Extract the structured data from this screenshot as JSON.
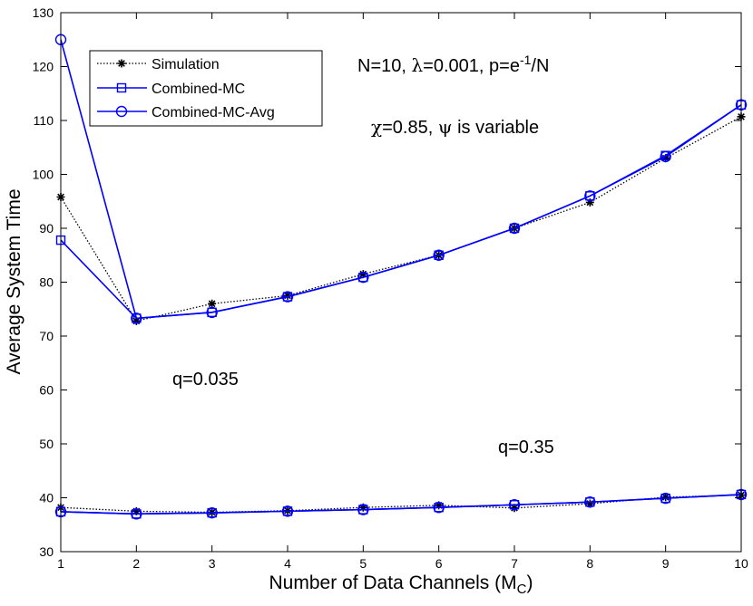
{
  "chart_data": {
    "type": "line",
    "x": [
      1,
      2,
      3,
      4,
      5,
      6,
      7,
      8,
      9,
      10
    ],
    "xlabel": {
      "main": "Number of Data Channels (M",
      "sub": "C",
      "end": ")"
    },
    "ylabel": "Average System Time",
    "xlim": [
      1,
      10
    ],
    "ylim": [
      30,
      130
    ],
    "xticks": [
      1,
      2,
      3,
      4,
      5,
      6,
      7,
      8,
      9,
      10
    ],
    "yticks": [
      30,
      40,
      50,
      60,
      70,
      80,
      90,
      100,
      110,
      120,
      130
    ],
    "grid": false,
    "legend_position": "top-left",
    "series": [
      {
        "name": "Simulation",
        "group": "q=0.035",
        "color": "#000000",
        "style": "dotted",
        "marker": "asterisk",
        "values": [
          95.8,
          72.8,
          76.0,
          77.5,
          81.5,
          85.0,
          90.0,
          94.8,
          103.0,
          110.7
        ]
      },
      {
        "name": "Combined-MC",
        "group": "q=0.035",
        "color": "#0000ff",
        "style": "solid",
        "marker": "square",
        "values": [
          87.8,
          73.3,
          74.4,
          77.3,
          80.9,
          85.0,
          90.0,
          96.0,
          103.5,
          112.9
        ]
      },
      {
        "name": "Combined-MC-Avg",
        "group": "q=0.035",
        "color": "#0000ff",
        "style": "solid",
        "marker": "circle",
        "values": [
          125.0,
          73.3,
          74.4,
          77.3,
          80.9,
          85.0,
          90.0,
          96.0,
          103.3,
          112.9
        ]
      },
      {
        "name": "Simulation",
        "group": "q=0.35",
        "color": "#000000",
        "style": "dotted",
        "marker": "asterisk",
        "values": [
          38.2,
          37.5,
          37.3,
          37.6,
          38.2,
          38.6,
          38.1,
          38.9,
          40.1,
          40.5
        ]
      },
      {
        "name": "Combined-MC",
        "group": "q=0.35",
        "color": "#0000ff",
        "style": "solid",
        "marker": "square",
        "values": [
          37.4,
          37.0,
          37.2,
          37.5,
          37.8,
          38.2,
          38.7,
          39.2,
          39.9,
          40.6
        ]
      },
      {
        "name": "Combined-MC-Avg",
        "group": "q=0.35",
        "color": "#0000ff",
        "style": "solid",
        "marker": "circle",
        "values": [
          37.4,
          37.0,
          37.2,
          37.5,
          37.8,
          38.2,
          38.7,
          39.2,
          39.9,
          40.6
        ]
      }
    ],
    "legend": [
      {
        "label": "Simulation",
        "color": "#000000",
        "style": "dotted",
        "marker": "asterisk"
      },
      {
        "label": "Combined-MC",
        "color": "#0000ff",
        "style": "solid",
        "marker": "square"
      },
      {
        "label": "Combined-MC-Avg",
        "color": "#0000ff",
        "style": "solid",
        "marker": "circle"
      }
    ],
    "annotations": {
      "params_line1": {
        "a": "N=10, ",
        "g1": "λ",
        "b": "=0.001, p=e",
        "sup": "-1",
        "c": "/N"
      },
      "params_line2": {
        "g1": "χ",
        "a": "=0.85, ",
        "g2": "ψ",
        "b": " is variable"
      },
      "q_low": "q=0.035",
      "q_high": "q=0.35"
    }
  }
}
